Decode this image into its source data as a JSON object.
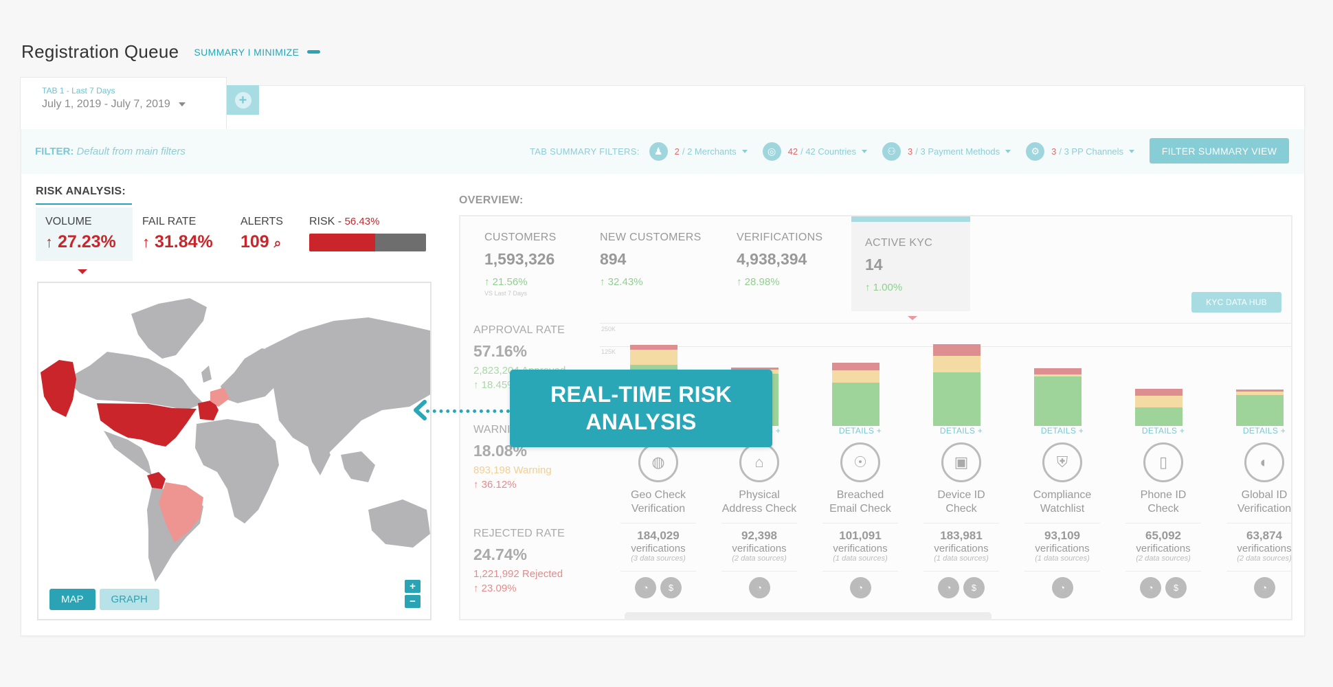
{
  "page": {
    "title": "Registration Queue",
    "toggle": "SUMMARY I MINIMIZE"
  },
  "tab": {
    "label": "TAB 1 - Last 7 Days",
    "range": "July 1, 2019 - July 7, 2019"
  },
  "filter": {
    "label": "FILTER:",
    "value": "Default from main filters",
    "summary_title": "TAB SUMMARY FILTERS:",
    "items": [
      {
        "num": "2",
        "rest": "/ 2 Merchants",
        "icon": "merchants-icon"
      },
      {
        "num": "42",
        "rest": "/ 42 Countries",
        "icon": "globe-icon"
      },
      {
        "num": "3",
        "rest": "/ 3 Payment Methods",
        "icon": "payment-icon"
      },
      {
        "num": "3",
        "rest": "/ 3 PP Channels",
        "icon": "channels-icon"
      }
    ],
    "button": "FILTER SUMMARY VIEW"
  },
  "risk": {
    "title": "RISK ANALYSIS:",
    "volume": {
      "label": "VOLUME",
      "value": "27.23%"
    },
    "fail_rate": {
      "label": "FAIL RATE",
      "value": "31.84%"
    },
    "alerts": {
      "label": "ALERTS",
      "value": "109"
    },
    "risk": {
      "label": "RISK -",
      "value": "56.43%",
      "fill_percent": 56.43
    },
    "map_button": "MAP",
    "graph_button": "GRAPH",
    "zoom_in": "+",
    "zoom_out": "−"
  },
  "overview": {
    "title": "OVERVIEW:",
    "stats": [
      {
        "label": "CUSTOMERS",
        "value": "1,593,326",
        "change": "21.56%",
        "sub": "VS Last 7 Days"
      },
      {
        "label": "NEW CUSTOMERS",
        "value": "894",
        "change": "32.43%"
      },
      {
        "label": "VERIFICATIONS",
        "value": "4,938,394",
        "change": "28.98%"
      },
      {
        "label": "ACTIVE KYC",
        "value": "14",
        "change": "1.00%"
      }
    ],
    "kyc_button": "KYC DATA HUB",
    "approval": {
      "label": "APPROVAL RATE",
      "value": "57.16%",
      "sub": "2,823,204 Approved",
      "change": "18.45%"
    },
    "warning": {
      "label": "WARNING RATE",
      "value": "18.08%",
      "sub": "893,198 Warning",
      "change": "36.12%"
    },
    "rejected": {
      "label": "REJECTED RATE",
      "value": "24.74%",
      "sub": "1,221,992 Rejected",
      "change": "23.09%"
    },
    "grid_labels": [
      "250K",
      "125K"
    ],
    "details_label": "DETAILS +",
    "unit": "verifications",
    "checks": [
      {
        "name1": "Geo Check",
        "name2": "Verification",
        "count": "184,029",
        "sources": "(3 data sources)",
        "icon": "geo-globe-icon",
        "providers": 2
      },
      {
        "name1": "Physical",
        "name2": "Address Check",
        "count": "92,398",
        "sources": "(2 data sources)",
        "icon": "house-search-icon",
        "providers": 1
      },
      {
        "name1": "Breached",
        "name2": "Email Check",
        "count": "101,091",
        "sources": "(1 data sources)",
        "icon": "spy-icon",
        "providers": 1
      },
      {
        "name1": "Device ID",
        "name2": "Check",
        "count": "183,981",
        "sources": "(1 data sources)",
        "icon": "device-search-icon",
        "providers": 2
      },
      {
        "name1": "Compliance",
        "name2": "Watchlist",
        "count": "93,109",
        "sources": "(1 data sources)",
        "icon": "shield-user-icon",
        "providers": 1
      },
      {
        "name1": "Phone ID",
        "name2": "Check",
        "count": "65,092",
        "sources": "(2 data sources)",
        "icon": "phone-search-icon",
        "providers": 2
      },
      {
        "name1": "Global ID",
        "name2": "Verification",
        "count": "63,874",
        "sources": "(2 data sources)",
        "icon": "global-id-icon",
        "providers": 1
      }
    ]
  },
  "chart_data": {
    "type": "bar",
    "stacked": true,
    "categories": [
      "Geo Check Verification",
      "Physical Address Check",
      "Breached Email Check",
      "Device ID Check",
      "Compliance Watchlist",
      "Phone ID Check",
      "Global ID Verification"
    ],
    "series": [
      {
        "name": "Approved",
        "color": "#9ed39a",
        "values": [
          148,
          127,
          105,
          130,
          120,
          45,
          75
        ]
      },
      {
        "name": "Warning",
        "color": "#f4dba4",
        "values": [
          37,
          10,
          30,
          40,
          5,
          28,
          8
        ]
      },
      {
        "name": "Rejected",
        "color": "#dc8e90",
        "values": [
          12,
          5,
          18,
          28,
          15,
          17,
          6
        ]
      }
    ],
    "ylabel_ticks": [
      "250K",
      "125K"
    ],
    "ylim": [
      0,
      250
    ]
  },
  "callout": {
    "line1": "REAL-TIME RISK",
    "line2": "ANALYSIS"
  }
}
